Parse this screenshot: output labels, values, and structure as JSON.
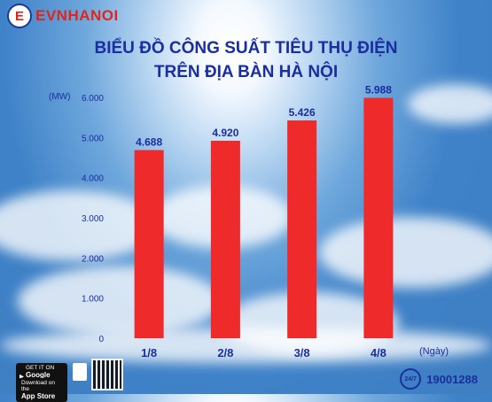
{
  "brand": {
    "logo_text": "EVNHANOI",
    "logo_mark": "E"
  },
  "title_line1": "BIỂU ĐỒ CÔNG SUẤT TIÊU THỤ ĐIỆN",
  "title_line2": "TRÊN ĐỊA BÀN HÀ NỘI",
  "chart_data": {
    "type": "bar",
    "categories": [
      "1/8",
      "2/8",
      "3/8",
      "4/8"
    ],
    "values": [
      4688,
      4920,
      5426,
      5988
    ],
    "value_labels": [
      "4.688",
      "4.920",
      "5.426",
      "5.988"
    ],
    "ylabel": "(MW)",
    "xlabel": "(Ngày)",
    "ylim": [
      0,
      6000
    ],
    "yticks": [
      0,
      1000,
      2000,
      3000,
      4000,
      5000,
      6000
    ],
    "ytick_labels": [
      "0",
      "1.000",
      "2.000",
      "3.000",
      "4.000",
      "5.000",
      "6.000"
    ],
    "grid": false,
    "bar_color": "#ee2a2a"
  },
  "footer": {
    "google_play_small": "GET IT ON",
    "google_play": "Google Play",
    "app_store_small": "Download on the",
    "app_store": "App Store",
    "hotline_icon": "24/7",
    "hotline": "19001288"
  },
  "colors": {
    "title": "#1a2ea0",
    "brand_red": "#e1251b"
  }
}
